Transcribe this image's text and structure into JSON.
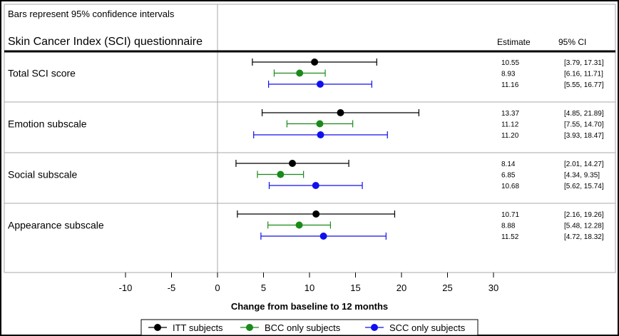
{
  "chart_data": {
    "type": "forest",
    "note": "Bars represent 95% confidence intervals",
    "questionnaire_label": "Skin Cancer Index (SCI) questionnaire",
    "column_headers": {
      "estimate": "Estimate",
      "ci": "95% CI"
    },
    "xlabel": "Change from baseline to 12 months",
    "xlim": [
      -10,
      30
    ],
    "x_ticks": [
      -10,
      -5,
      0,
      5,
      10,
      15,
      20,
      25,
      30
    ],
    "series": [
      {
        "name": "ITT subjects",
        "color": "#000000"
      },
      {
        "name": "BCC only subjects",
        "color": "#1a8a1a"
      },
      {
        "name": "SCC only subjects",
        "color": "#1010ee"
      }
    ],
    "groups": [
      {
        "label": "Total SCI score",
        "rows": [
          {
            "series": 0,
            "estimate": 10.55,
            "lower": 3.79,
            "upper": 17.31,
            "estimate_text": "10.55",
            "ci_text": "[3.79, 17.31]"
          },
          {
            "series": 1,
            "estimate": 8.93,
            "lower": 6.16,
            "upper": 11.71,
            "estimate_text": "8.93",
            "ci_text": "[6.16, 11.71]"
          },
          {
            "series": 2,
            "estimate": 11.16,
            "lower": 5.55,
            "upper": 16.77,
            "estimate_text": "11.16",
            "ci_text": "[5.55, 16.77]"
          }
        ]
      },
      {
        "label": "Emotion subscale",
        "rows": [
          {
            "series": 0,
            "estimate": 13.37,
            "lower": 4.85,
            "upper": 21.89,
            "estimate_text": "13.37",
            "ci_text": "[4.85, 21.89]"
          },
          {
            "series": 1,
            "estimate": 11.12,
            "lower": 7.55,
            "upper": 14.7,
            "estimate_text": "11.12",
            "ci_text": "[7.55, 14.70]"
          },
          {
            "series": 2,
            "estimate": 11.2,
            "lower": 3.93,
            "upper": 18.47,
            "estimate_text": "11.20",
            "ci_text": "[3.93, 18.47]"
          }
        ]
      },
      {
        "label": "Social subscale",
        "rows": [
          {
            "series": 0,
            "estimate": 8.14,
            "lower": 2.01,
            "upper": 14.27,
            "estimate_text": "8.14",
            "ci_text": "[2.01, 14.27]"
          },
          {
            "series": 1,
            "estimate": 6.85,
            "lower": 4.34,
            "upper": 9.35,
            "estimate_text": "6.85",
            "ci_text": "[4.34, 9.35]"
          },
          {
            "series": 2,
            "estimate": 10.68,
            "lower": 5.62,
            "upper": 15.74,
            "estimate_text": "10.68",
            "ci_text": "[5.62, 15.74]"
          }
        ]
      },
      {
        "label": "Appearance subscale",
        "rows": [
          {
            "series": 0,
            "estimate": 10.71,
            "lower": 2.16,
            "upper": 19.26,
            "estimate_text": "10.71",
            "ci_text": "[2.16, 19.26]"
          },
          {
            "series": 1,
            "estimate": 8.88,
            "lower": 5.48,
            "upper": 12.28,
            "estimate_text": "8.88",
            "ci_text": "[5.48, 12.28]"
          },
          {
            "series": 2,
            "estimate": 11.52,
            "lower": 4.72,
            "upper": 18.32,
            "estimate_text": "11.52",
            "ci_text": "[4.72, 18.32]"
          }
        ]
      }
    ]
  }
}
